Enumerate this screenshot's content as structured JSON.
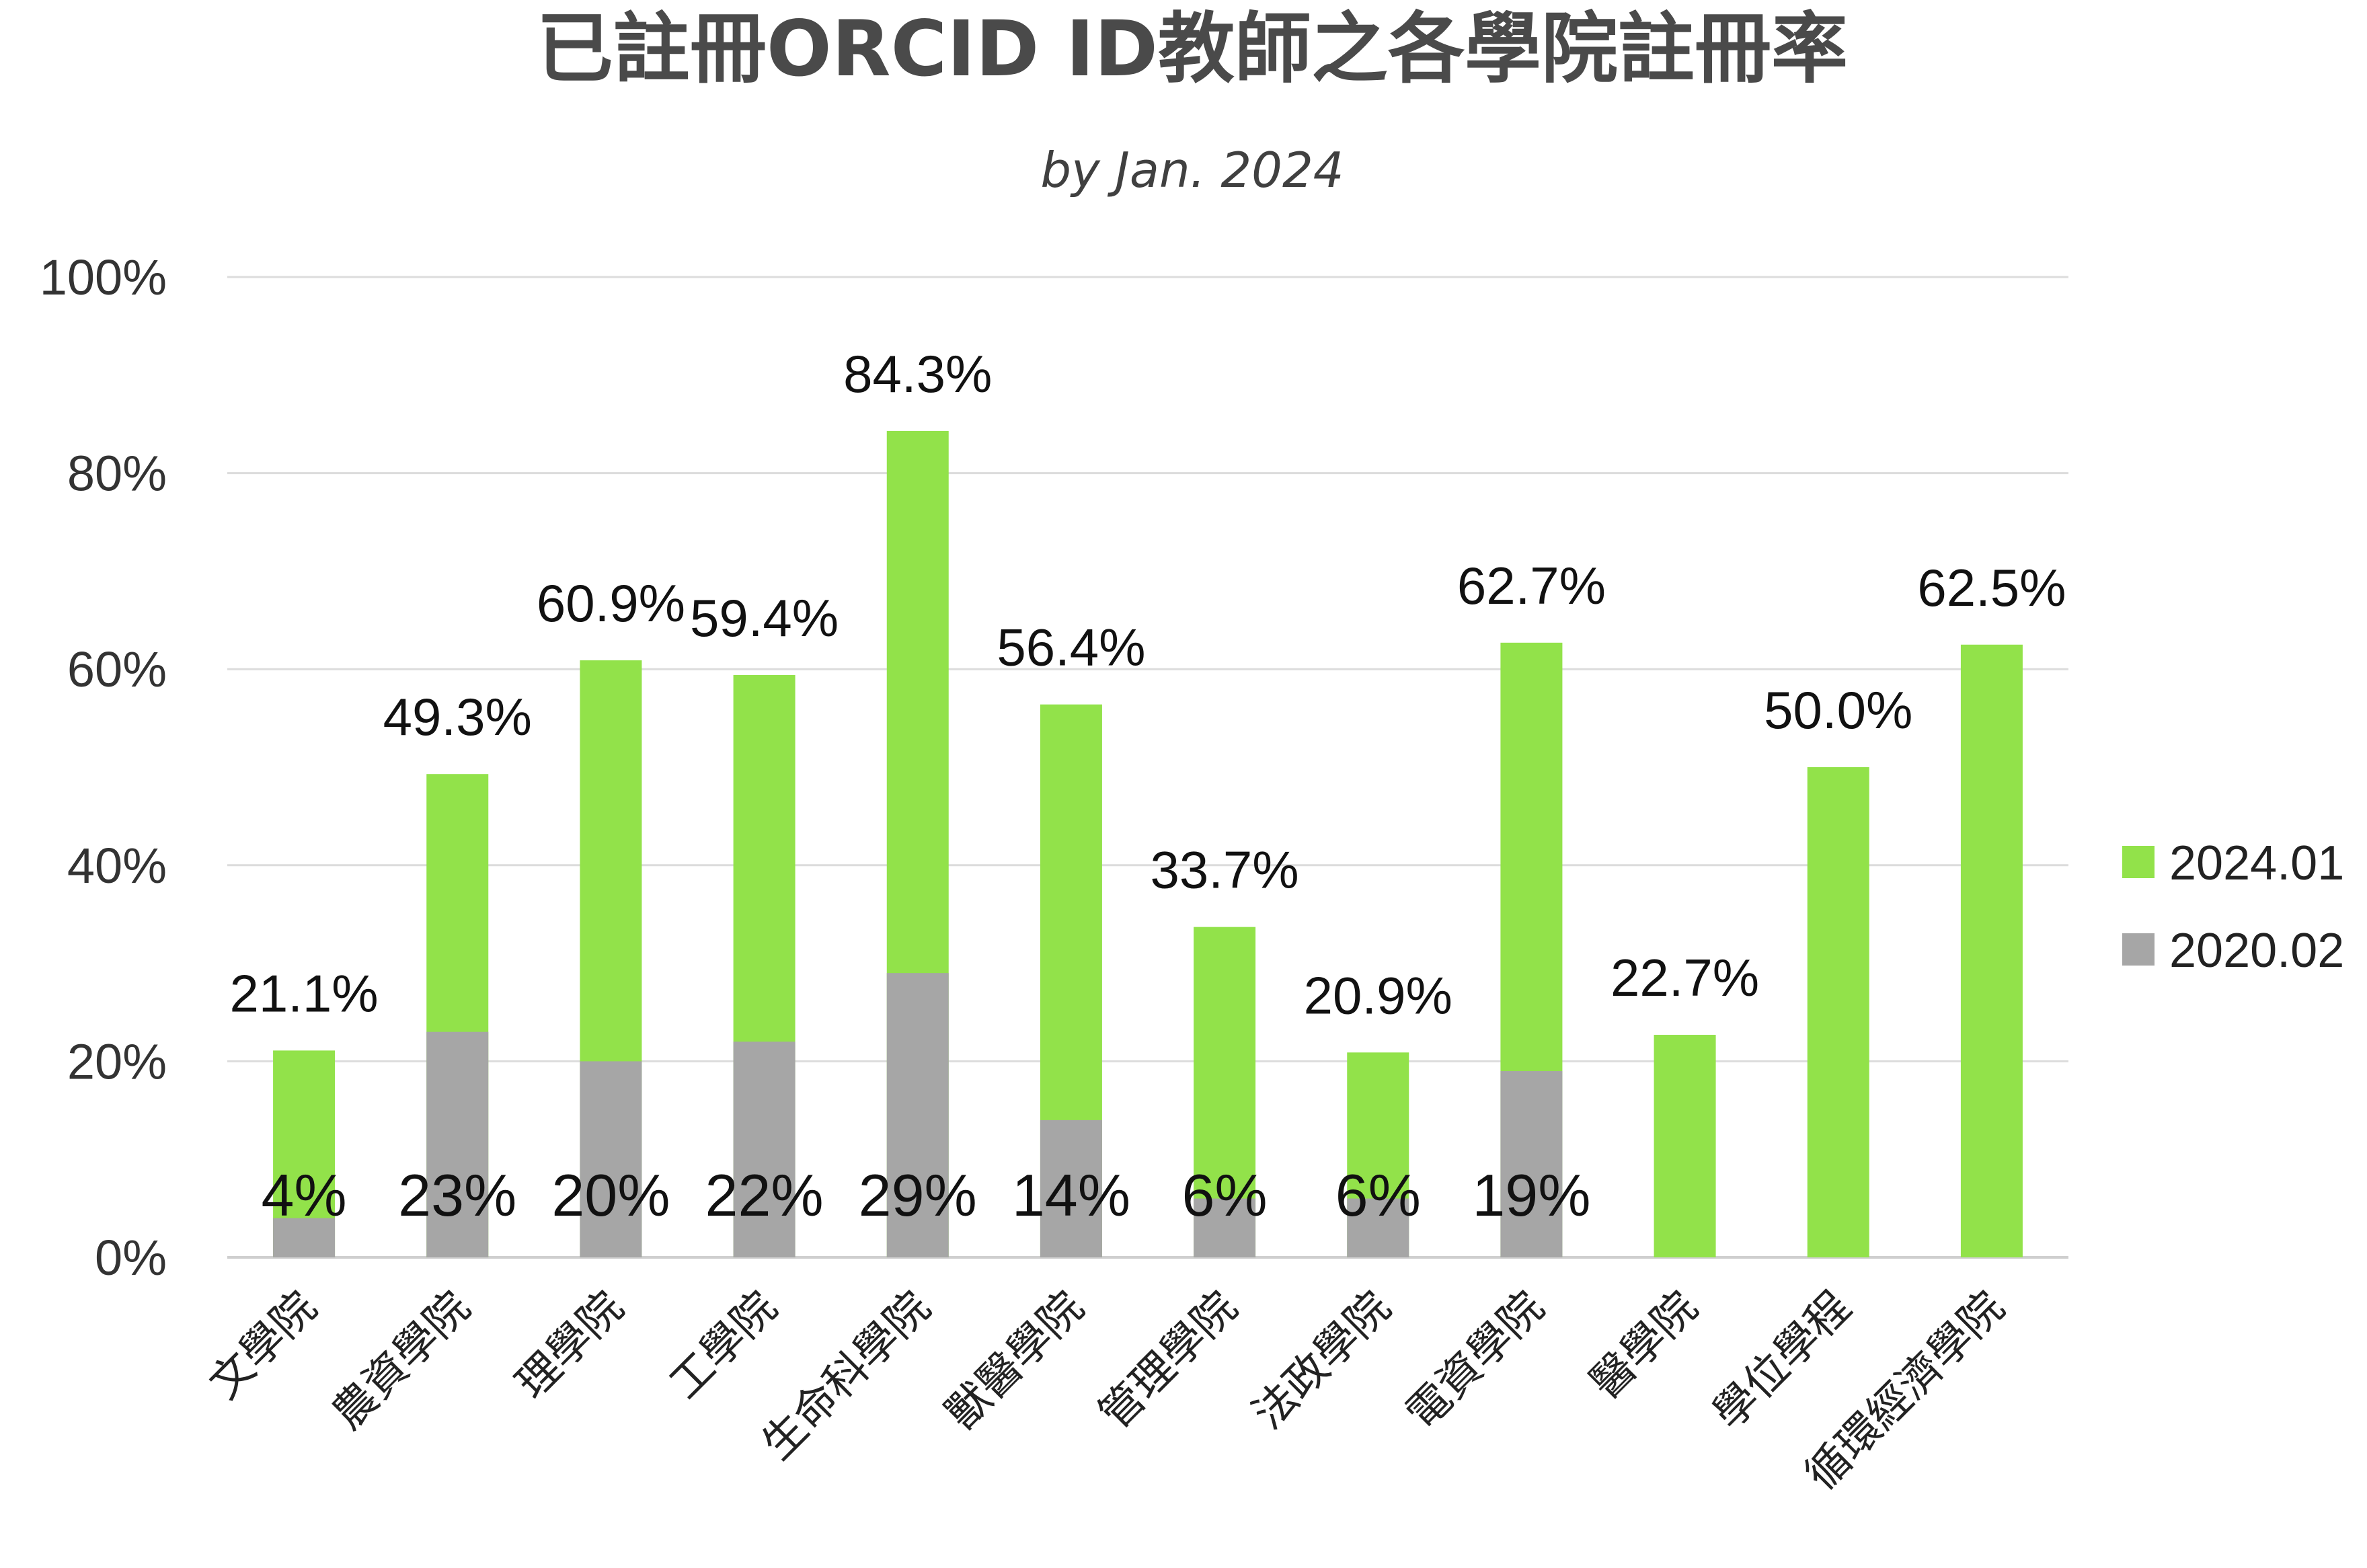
{
  "chart_data": {
    "type": "bar",
    "stacking": "overlay",
    "title": "已註冊ORCID ID教師之各學院註冊率",
    "subtitle": "by Jan. 2024",
    "categories": [
      "文學院",
      "農資學院",
      "理學院",
      "工學院",
      "生命科學院",
      "獸醫學院",
      "管理學院",
      "法政學院",
      "電資學院",
      "醫學院",
      "學位學程",
      "循環經濟學院"
    ],
    "series": [
      {
        "name": "2024.01",
        "color": "#92e24a",
        "values": [
          21.1,
          49.3,
          60.9,
          59.4,
          84.3,
          56.4,
          33.7,
          20.9,
          62.7,
          22.7,
          50.0,
          62.5
        ],
        "labels": [
          "21.1%",
          "49.3%",
          "60.9%",
          "59.4%",
          "84.3%",
          "56.4%",
          "33.7%",
          "20.9%",
          "62.7%",
          "22.7%",
          "50.0%",
          "62.5%"
        ]
      },
      {
        "name": "2020.02",
        "color": "#a6a6a6",
        "values": [
          4,
          23,
          20,
          22,
          29,
          14,
          6,
          6,
          19,
          null,
          null,
          null
        ],
        "labels": [
          "4%",
          "23%",
          "20%",
          "22%",
          "29%",
          "14%",
          "6%",
          "6%",
          "19%",
          "",
          "",
          ""
        ]
      }
    ],
    "ylim": [
      0,
      100
    ],
    "yticks": [
      "0%",
      "20%",
      "40%",
      "60%",
      "80%",
      "100%"
    ],
    "ytick_values": [
      0,
      20,
      40,
      60,
      80,
      100
    ],
    "grid": true,
    "legend_position": "right"
  }
}
